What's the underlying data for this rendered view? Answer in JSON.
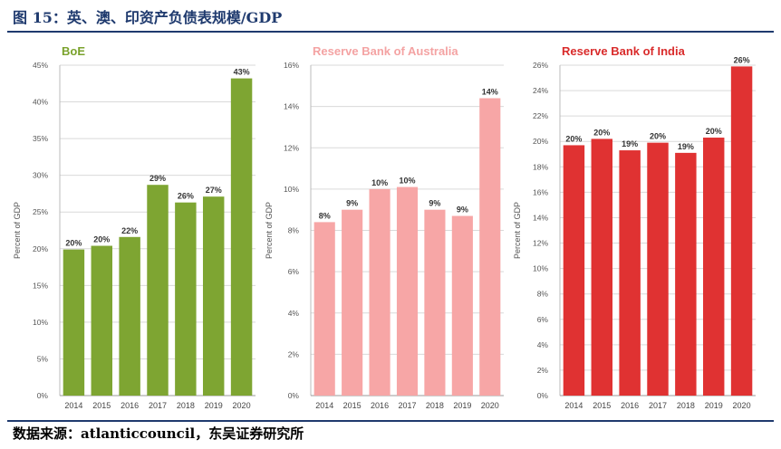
{
  "figure_title": "图 15：英、澳、印资产负债表规模/GDP",
  "source_note": "数据来源：atlanticcouncil，东吴证券研究所",
  "chart_data": [
    {
      "type": "bar",
      "title": "BoE",
      "title_color": "#7aa22c",
      "bar_color": "#7ea532",
      "ylabel": "Percent of GDP",
      "ylim": [
        0,
        45
      ],
      "y_ticks": [
        0,
        5,
        10,
        15,
        20,
        25,
        30,
        35,
        40,
        45
      ],
      "y_tick_labels": [
        "0%",
        "5%",
        "10%",
        "15%",
        "20%",
        "25%",
        "30%",
        "35%",
        "40%",
        "45%"
      ],
      "categories": [
        "2014",
        "2015",
        "2016",
        "2017",
        "2018",
        "2019",
        "2020"
      ],
      "values": [
        19.9,
        20.4,
        21.6,
        28.7,
        26.3,
        27.1,
        43.2
      ],
      "data_labels": [
        "20%",
        "20%",
        "22%",
        "29%",
        "26%",
        "27%",
        "43%"
      ],
      "grid": true
    },
    {
      "type": "bar",
      "title": "Reserve Bank of Australia",
      "title_color": "#f4a3a3",
      "bar_color": "#f7a6a6",
      "ylabel": "Percent of GDP",
      "ylim": [
        0,
        16
      ],
      "y_ticks": [
        0,
        2,
        4,
        6,
        8,
        10,
        12,
        14,
        16
      ],
      "y_tick_labels": [
        "0%",
        "2%",
        "4%",
        "6%",
        "8%",
        "10%",
        "12%",
        "14%",
        "16%"
      ],
      "categories": [
        "2014",
        "2015",
        "2016",
        "2017",
        "2018",
        "2019",
        "2020"
      ],
      "values": [
        8.4,
        9.0,
        10.0,
        10.1,
        9.0,
        8.7,
        14.4
      ],
      "data_labels": [
        "8%",
        "9%",
        "10%",
        "10%",
        "9%",
        "9%",
        "14%"
      ],
      "grid": true
    },
    {
      "type": "bar",
      "title": "Reserve Bank of India",
      "title_color": "#d92b2b",
      "bar_color": "#e03232",
      "ylabel": "Percent of GDP",
      "ylim": [
        0,
        26
      ],
      "y_ticks": [
        0,
        2,
        4,
        6,
        8,
        10,
        12,
        14,
        16,
        18,
        20,
        22,
        24,
        26
      ],
      "y_tick_labels": [
        "0%",
        "2%",
        "4%",
        "6%",
        "8%",
        "10%",
        "12%",
        "14%",
        "16%",
        "18%",
        "20%",
        "22%",
        "24%",
        "26%"
      ],
      "categories": [
        "2014",
        "2015",
        "2016",
        "2017",
        "2018",
        "2019",
        "2020"
      ],
      "values": [
        19.7,
        20.2,
        19.3,
        19.9,
        19.1,
        20.3,
        25.9
      ],
      "data_labels": [
        "20%",
        "20%",
        "19%",
        "20%",
        "19%",
        "20%",
        "26%"
      ],
      "grid": true
    }
  ]
}
